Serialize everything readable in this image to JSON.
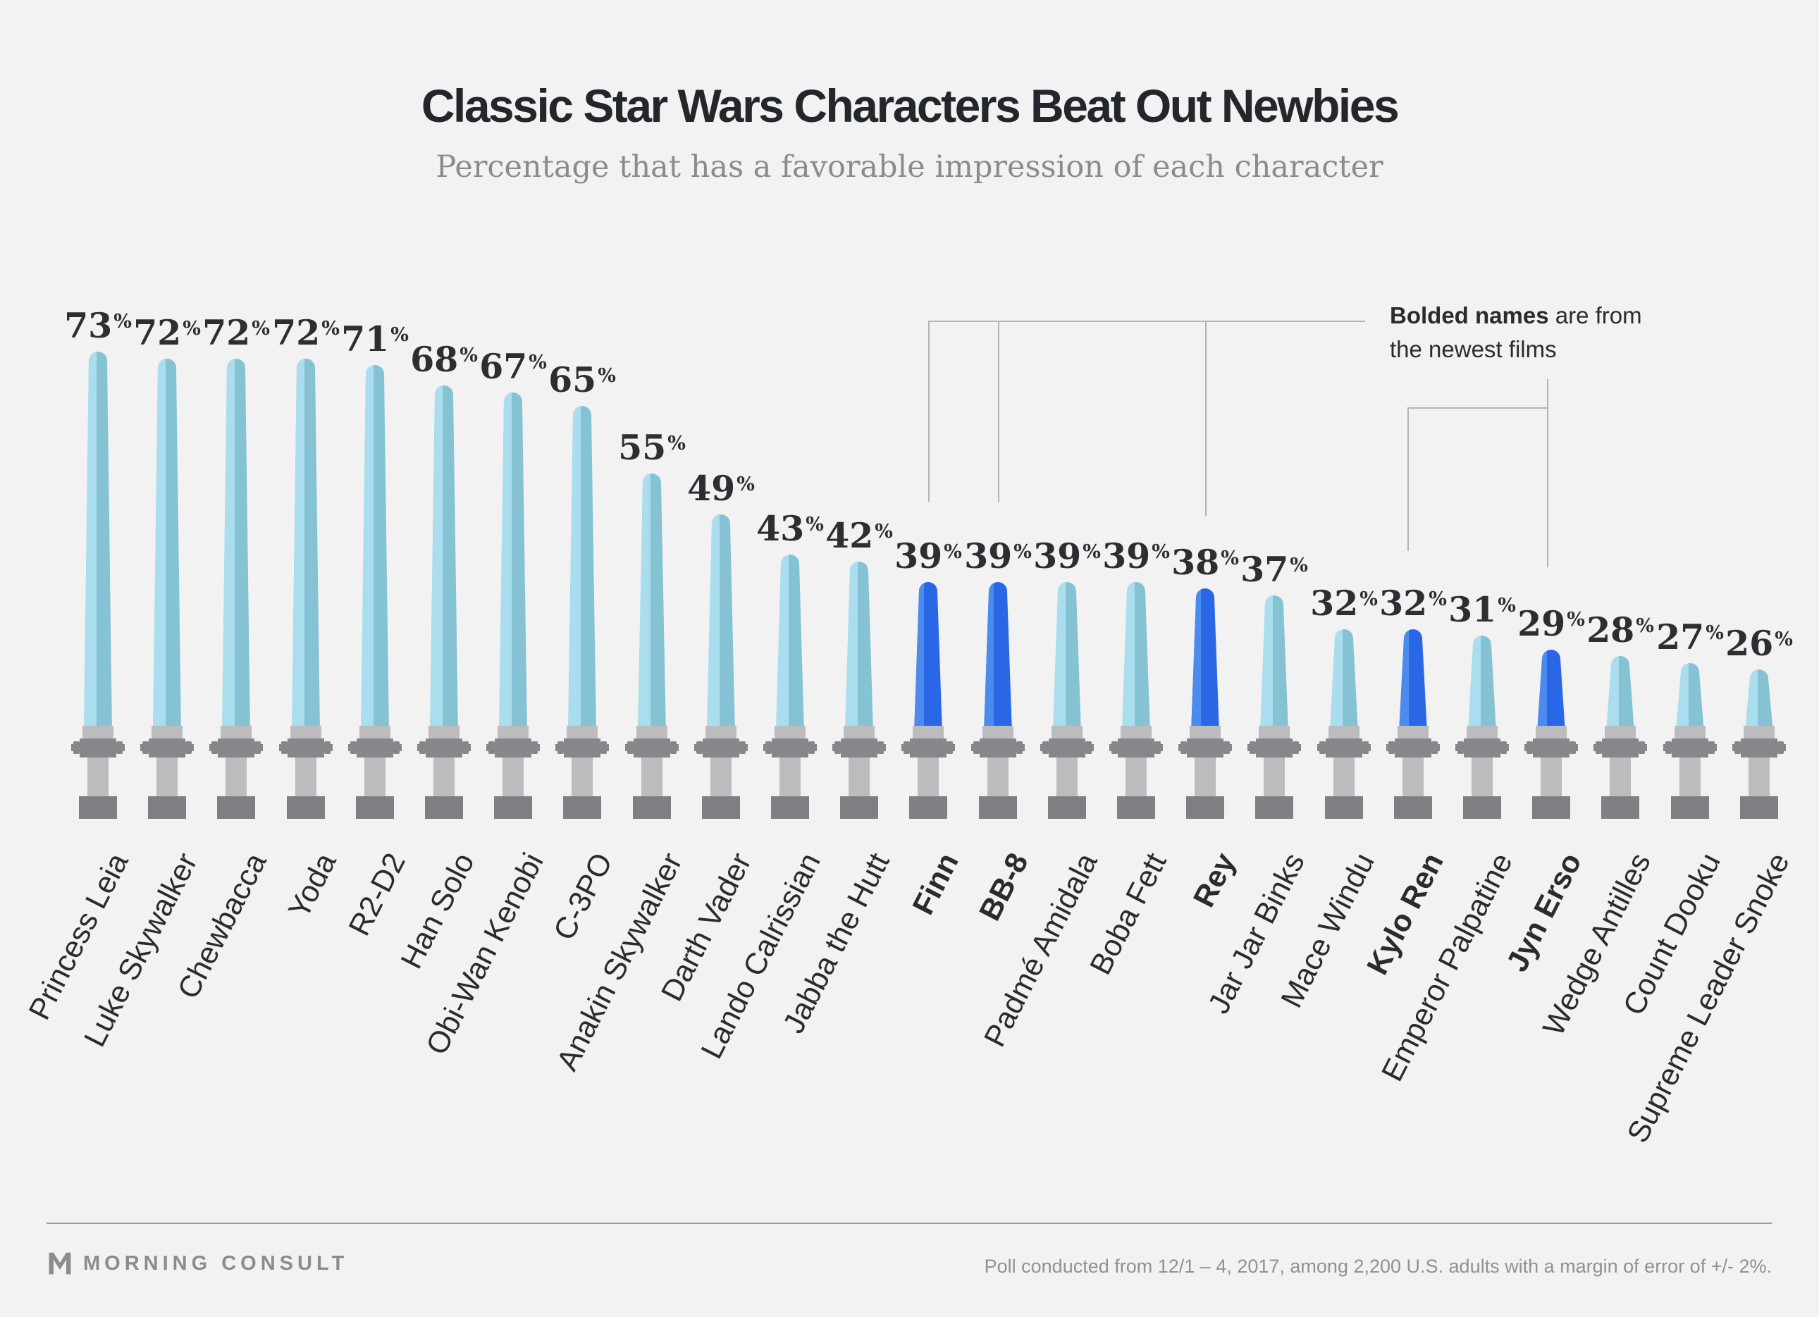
{
  "title": "Classic Star Wars Characters Beat Out Newbies",
  "subtitle": "Percentage that has a favorable impression of each character",
  "annotation": {
    "bold_part": "Bolded names",
    "line1_rest": " are from",
    "line2": "the newest films"
  },
  "chart_data": {
    "type": "bar",
    "title": "Classic Star Wars Characters Beat Out Newbies",
    "subtitle": "Percentage that has a favorable impression of each character",
    "unit": "%",
    "ylim": [
      0,
      100
    ],
    "grid": false,
    "legend": "bolded names are from the newest films (dark blue blades)",
    "categories": [
      "Princess Leia",
      "Luke Skywalker",
      "Chewbacca",
      "Yoda",
      "R2-D2",
      "Han Solo",
      "Obi-Wan Kenobi",
      "C-3PO",
      "Anakin Skywalker",
      "Darth Vader",
      "Lando Calrissian",
      "Jabba the Hutt",
      "Finn",
      "BB-8",
      "Padmé Amidala",
      "Boba Fett",
      "Rey",
      "Jar Jar Binks",
      "Mace Windu",
      "Kylo Ren",
      "Emperor Palpatine",
      "Jyn Erso",
      "Wedge Antilles",
      "Count Dooku",
      "Supreme Leader Snoke"
    ],
    "values": [
      73,
      72,
      72,
      72,
      71,
      68,
      67,
      65,
      55,
      49,
      43,
      42,
      39,
      39,
      39,
      39,
      38,
      37,
      32,
      32,
      31,
      29,
      28,
      27,
      26
    ],
    "bars": [
      {
        "name": "Princess Leia",
        "value": 73,
        "new_film": false
      },
      {
        "name": "Luke Skywalker",
        "value": 72,
        "new_film": false
      },
      {
        "name": "Chewbacca",
        "value": 72,
        "new_film": false
      },
      {
        "name": "Yoda",
        "value": 72,
        "new_film": false
      },
      {
        "name": "R2-D2",
        "value": 71,
        "new_film": false
      },
      {
        "name": "Han Solo",
        "value": 68,
        "new_film": false
      },
      {
        "name": "Obi-Wan Kenobi",
        "value": 67,
        "new_film": false
      },
      {
        "name": "C-3PO",
        "value": 65,
        "new_film": false
      },
      {
        "name": "Anakin Skywalker",
        "value": 55,
        "new_film": false
      },
      {
        "name": "Darth Vader",
        "value": 49,
        "new_film": false
      },
      {
        "name": "Lando Calrissian",
        "value": 43,
        "new_film": false
      },
      {
        "name": "Jabba the Hutt",
        "value": 42,
        "new_film": false
      },
      {
        "name": "Finn",
        "value": 39,
        "new_film": true
      },
      {
        "name": "BB-8",
        "value": 39,
        "new_film": true
      },
      {
        "name": "Padmé Amidala",
        "value": 39,
        "new_film": false
      },
      {
        "name": "Boba Fett",
        "value": 39,
        "new_film": false
      },
      {
        "name": "Rey",
        "value": 38,
        "new_film": true
      },
      {
        "name": "Jar Jar Binks",
        "value": 37,
        "new_film": false
      },
      {
        "name": "Mace Windu",
        "value": 32,
        "new_film": false
      },
      {
        "name": "Kylo Ren",
        "value": 32,
        "new_film": true
      },
      {
        "name": "Emperor Palpatine",
        "value": 31,
        "new_film": false
      },
      {
        "name": "Jyn Erso",
        "value": 29,
        "new_film": true
      },
      {
        "name": "Wedge Antilles",
        "value": 28,
        "new_film": false
      },
      {
        "name": "Count Dooku",
        "value": 27,
        "new_film": false
      },
      {
        "name": "Supreme Leader Snoke",
        "value": 26,
        "new_film": false
      }
    ],
    "colors": {
      "classic_blade_light": "#aadeef",
      "classic_blade_dark": "#85c2d4",
      "new_blade_light": "#4c8bee",
      "new_blade_dark": "#2a67e6",
      "hilt_light_gray": "#bcbcbe",
      "hilt_mid_gray": "#87878b",
      "hilt_dark_gray": "#7f7f83",
      "value_text": "#2d2e31",
      "background": "#f2f2f3"
    }
  },
  "footer": {
    "brand": "MORNING CONSULT",
    "note": "Poll conducted from 12/1 – 4, 2017, among 2,200 U.S. adults with a margin of error of +/- 2%."
  }
}
